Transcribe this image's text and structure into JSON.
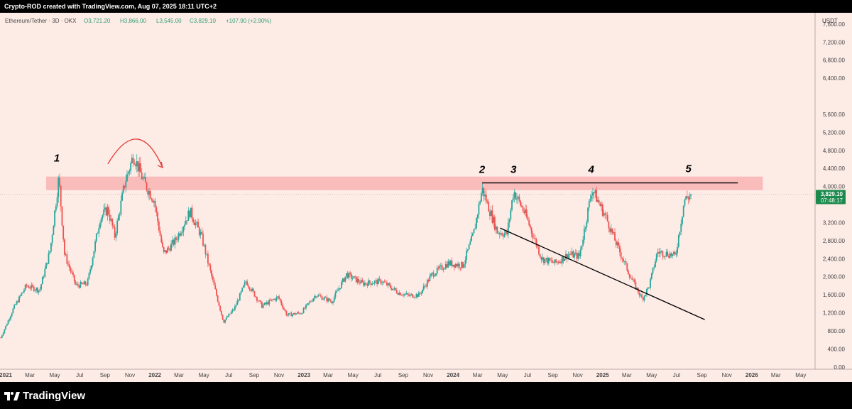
{
  "header": {
    "credit": "Crypto-ROD created with TradingView.com, Aug 07, 2025 18:11 UTC+2"
  },
  "footer": {
    "brand": "TradingView"
  },
  "colors": {
    "background": "#fdebe6",
    "up": "#26a69a",
    "down": "#ef5350",
    "zone": "#f9b6b6",
    "price_tag": "#1b8a4c",
    "line": "#000000",
    "arrow": "#e53935"
  },
  "chart_data": {
    "type": "candlestick",
    "symbol_line": {
      "name": "Ethereum/Tether · 3D · OKX",
      "open": "O3,721.20",
      "high": "H3,866.00",
      "low": "L3,545.00",
      "close": "C3,829.10",
      "change": "+107.90 (+2.90%)"
    },
    "currency": "USDT",
    "price_tag": {
      "price": "3,829.10",
      "countdown": "07:48:17",
      "value": 3829.1
    },
    "y_ticks": [
      {
        "label": "7,600.00",
        "value": 7600
      },
      {
        "label": "7,200.00",
        "value": 7200
      },
      {
        "label": "6,800.00",
        "value": 6800
      },
      {
        "label": "6,400.00",
        "value": 6400
      },
      {
        "label": "5,600.00",
        "value": 5600
      },
      {
        "label": "5,200.00",
        "value": 5200
      },
      {
        "label": "4,800.00",
        "value": 4800
      },
      {
        "label": "4,400.00",
        "value": 4400
      },
      {
        "label": "4,000.00",
        "value": 4000
      },
      {
        "label": "3,200.00",
        "value": 3200
      },
      {
        "label": "2,800.00",
        "value": 2800
      },
      {
        "label": "2,400.00",
        "value": 2400
      },
      {
        "label": "2,000.00",
        "value": 2000
      },
      {
        "label": "1,600.00",
        "value": 1600
      },
      {
        "label": "1,200.00",
        "value": 1200
      },
      {
        "label": "800.00",
        "value": 800
      },
      {
        "label": "400.00",
        "value": 400
      },
      {
        "label": "0.00",
        "value": 0
      }
    ],
    "y_range": [
      -50,
      7850
    ],
    "x_ticks": [
      {
        "label": "2021",
        "date": "2021-01-01",
        "bold": true
      },
      {
        "label": "Mar",
        "date": "2021-03-01"
      },
      {
        "label": "May",
        "date": "2021-05-01"
      },
      {
        "label": "Jul",
        "date": "2021-07-01"
      },
      {
        "label": "Sep",
        "date": "2021-09-01"
      },
      {
        "label": "Nov",
        "date": "2021-11-01"
      },
      {
        "label": "2022",
        "date": "2022-01-01",
        "bold": true
      },
      {
        "label": "Mar",
        "date": "2022-03-01"
      },
      {
        "label": "May",
        "date": "2022-05-01"
      },
      {
        "label": "Jul",
        "date": "2022-07-01"
      },
      {
        "label": "Sep",
        "date": "2022-09-01"
      },
      {
        "label": "Nov",
        "date": "2022-11-01"
      },
      {
        "label": "2023",
        "date": "2023-01-01",
        "bold": true
      },
      {
        "label": "Mar",
        "date": "2023-03-01"
      },
      {
        "label": "May",
        "date": "2023-05-01"
      },
      {
        "label": "Jul",
        "date": "2023-07-01"
      },
      {
        "label": "Sep",
        "date": "2023-09-01"
      },
      {
        "label": "Nov",
        "date": "2023-11-01"
      },
      {
        "label": "2024",
        "date": "2024-01-01",
        "bold": true
      },
      {
        "label": "Mar",
        "date": "2024-03-01"
      },
      {
        "label": "May",
        "date": "2024-05-01"
      },
      {
        "label": "Jul",
        "date": "2024-07-01"
      },
      {
        "label": "Sep",
        "date": "2024-09-01"
      },
      {
        "label": "Nov",
        "date": "2024-11-01"
      },
      {
        "label": "2025",
        "date": "2025-01-01",
        "bold": true
      },
      {
        "label": "Mar",
        "date": "2025-03-01"
      },
      {
        "label": "May",
        "date": "2025-05-01"
      },
      {
        "label": "Jul",
        "date": "2025-07-01"
      },
      {
        "label": "Sep",
        "date": "2025-09-01"
      },
      {
        "label": "Nov",
        "date": "2025-11-01"
      },
      {
        "label": "2026",
        "date": "2026-01-01",
        "bold": true
      },
      {
        "label": "Mar",
        "date": "2026-03-01"
      },
      {
        "label": "May",
        "date": "2026-05-01"
      }
    ],
    "x_range": [
      "2020-12-18",
      "2026-06-05"
    ],
    "price_path": [
      {
        "date": "2020-12-20",
        "price": 650
      },
      {
        "date": "2021-01-20",
        "price": 1300
      },
      {
        "date": "2021-02-20",
        "price": 1800
      },
      {
        "date": "2021-03-25",
        "price": 1700
      },
      {
        "date": "2021-04-20",
        "price": 2600
      },
      {
        "date": "2021-05-11",
        "price": 4200
      },
      {
        "date": "2021-05-25",
        "price": 2500
      },
      {
        "date": "2021-06-22",
        "price": 1800
      },
      {
        "date": "2021-07-20",
        "price": 1850
      },
      {
        "date": "2021-08-20",
        "price": 3300
      },
      {
        "date": "2021-09-08",
        "price": 3500
      },
      {
        "date": "2021-09-25",
        "price": 2900
      },
      {
        "date": "2021-10-20",
        "price": 4100
      },
      {
        "date": "2021-11-10",
        "price": 4700
      },
      {
        "date": "2021-12-05",
        "price": 4100
      },
      {
        "date": "2021-12-30",
        "price": 3700
      },
      {
        "date": "2022-01-22",
        "price": 2500
      },
      {
        "date": "2022-02-20",
        "price": 2800
      },
      {
        "date": "2022-03-28",
        "price": 3450
      },
      {
        "date": "2022-04-25",
        "price": 2900
      },
      {
        "date": "2022-05-20",
        "price": 2000
      },
      {
        "date": "2022-06-18",
        "price": 1000
      },
      {
        "date": "2022-07-15",
        "price": 1300
      },
      {
        "date": "2022-08-12",
        "price": 1900
      },
      {
        "date": "2022-09-20",
        "price": 1350
      },
      {
        "date": "2022-10-30",
        "price": 1550
      },
      {
        "date": "2022-11-20",
        "price": 1150
      },
      {
        "date": "2022-12-25",
        "price": 1200
      },
      {
        "date": "2023-01-30",
        "price": 1600
      },
      {
        "date": "2023-03-10",
        "price": 1450
      },
      {
        "date": "2023-04-15",
        "price": 2050
      },
      {
        "date": "2023-05-25",
        "price": 1850
      },
      {
        "date": "2023-07-10",
        "price": 1900
      },
      {
        "date": "2023-08-20",
        "price": 1650
      },
      {
        "date": "2023-09-15",
        "price": 1580
      },
      {
        "date": "2023-10-10",
        "price": 1600
      },
      {
        "date": "2023-11-10",
        "price": 2050
      },
      {
        "date": "2023-12-20",
        "price": 2300
      },
      {
        "date": "2024-01-25",
        "price": 2250
      },
      {
        "date": "2024-02-20",
        "price": 2950
      },
      {
        "date": "2024-03-12",
        "price": 3950
      },
      {
        "date": "2024-04-18",
        "price": 3000
      },
      {
        "date": "2024-05-12",
        "price": 2950
      },
      {
        "date": "2024-05-28",
        "price": 3900
      },
      {
        "date": "2024-06-25",
        "price": 3400
      },
      {
        "date": "2024-08-05",
        "price": 2400
      },
      {
        "date": "2024-09-07",
        "price": 2300
      },
      {
        "date": "2024-10-10",
        "price": 2500
      },
      {
        "date": "2024-11-05",
        "price": 2450
      },
      {
        "date": "2024-12-06",
        "price": 3950
      },
      {
        "date": "2025-01-10",
        "price": 3300
      },
      {
        "date": "2025-02-05",
        "price": 2700
      },
      {
        "date": "2025-03-10",
        "price": 2000
      },
      {
        "date": "2025-04-08",
        "price": 1500
      },
      {
        "date": "2025-04-25",
        "price": 1800
      },
      {
        "date": "2025-05-15",
        "price": 2550
      },
      {
        "date": "2025-06-15",
        "price": 2500
      },
      {
        "date": "2025-06-28",
        "price": 2450
      },
      {
        "date": "2025-07-20",
        "price": 3700
      },
      {
        "date": "2025-08-07",
        "price": 3829
      }
    ],
    "zone": {
      "from": "2021-04-10",
      "to": "2026-01-28",
      "low": 3920,
      "high": 4220
    },
    "lines": [
      {
        "id": "resistance",
        "from": {
          "date": "2024-03-12",
          "price": 4080
        },
        "to": {
          "date": "2025-11-28",
          "price": 4080
        }
      },
      {
        "id": "support",
        "from": {
          "date": "2024-04-25",
          "price": 3080
        },
        "to": {
          "date": "2025-09-08",
          "price": 1050
        }
      }
    ],
    "arc": {
      "from": {
        "date": "2021-09-08",
        "price": 4500
      },
      "peak": {
        "date": "2021-11-18",
        "price": 5050
      },
      "to": {
        "date": "2022-01-20",
        "price": 4420
      }
    },
    "wave_labels": [
      {
        "text": "1",
        "date": "2021-05-06",
        "price": 4550
      },
      {
        "text": "2",
        "date": "2024-03-12",
        "price": 4300
      },
      {
        "text": "3",
        "date": "2024-05-28",
        "price": 4300
      },
      {
        "text": "4",
        "date": "2024-12-04",
        "price": 4300
      },
      {
        "text": "5",
        "date": "2025-07-30",
        "price": 4320
      }
    ]
  }
}
